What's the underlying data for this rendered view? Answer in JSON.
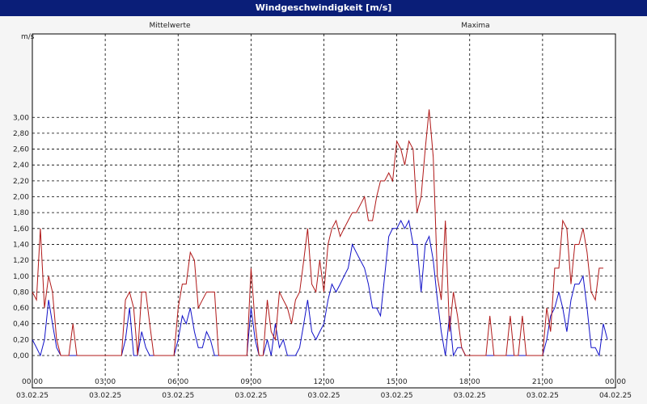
{
  "window": {
    "title": "Windgeschwindigkeit [m/s]"
  },
  "chart_data": {
    "type": "line",
    "title": "Windgeschwindigkeit [m/s]",
    "ylabel": "m/s",
    "ylim": [
      0,
      3.1
    ],
    "grid": true,
    "yticks": [
      "3,00",
      "2,80",
      "2,60",
      "2,40",
      "2,20",
      "2,00",
      "1,80",
      "1,60",
      "1,40",
      "1,20",
      "1,00",
      "0,80",
      "0,60",
      "0,40",
      "0,20",
      "0,00"
    ],
    "xticks": [
      {
        "time": "00:00",
        "date": "03.02.25"
      },
      {
        "time": "03:00",
        "date": "03.02.25"
      },
      {
        "time": "06:00",
        "date": "03.02.25"
      },
      {
        "time": "09:00",
        "date": "03.02.25"
      },
      {
        "time": "12:00",
        "date": "03.02.25"
      },
      {
        "time": "15:00",
        "date": "03.02.25"
      },
      {
        "time": "18:00",
        "date": "03.02.25"
      },
      {
        "time": "21:00",
        "date": "03.02.25"
      },
      {
        "time": "00:00",
        "date": "04.02.25"
      }
    ],
    "x_unit": "hours since 03.02.25 00:00",
    "series": [
      {
        "name": "Mittelwerte",
        "color": "#1010c8",
        "points": [
          [
            0,
            0.2
          ],
          [
            0.17,
            0.1
          ],
          [
            0.33,
            0
          ],
          [
            0.5,
            0.2
          ],
          [
            0.67,
            0.7
          ],
          [
            0.83,
            0.4
          ],
          [
            1,
            0.1
          ],
          [
            1.17,
            0
          ],
          [
            3.67,
            0
          ],
          [
            3.83,
            0.2
          ],
          [
            4,
            0.6
          ],
          [
            4.17,
            0
          ],
          [
            4.33,
            0
          ],
          [
            4.5,
            0.3
          ],
          [
            4.67,
            0.1
          ],
          [
            4.83,
            0
          ],
          [
            5.83,
            0
          ],
          [
            6,
            0.2
          ],
          [
            6.17,
            0.5
          ],
          [
            6.33,
            0.4
          ],
          [
            6.5,
            0.6
          ],
          [
            6.67,
            0.3
          ],
          [
            6.83,
            0.1
          ],
          [
            7,
            0.1
          ],
          [
            7.17,
            0.3
          ],
          [
            7.33,
            0.2
          ],
          [
            7.5,
            0
          ],
          [
            8.83,
            0
          ],
          [
            9,
            0.6
          ],
          [
            9.17,
            0.2
          ],
          [
            9.33,
            0
          ],
          [
            9.5,
            0
          ],
          [
            9.67,
            0.2
          ],
          [
            9.83,
            0
          ],
          [
            10,
            0.4
          ],
          [
            10.17,
            0.1
          ],
          [
            10.33,
            0.2
          ],
          [
            10.5,
            0
          ],
          [
            10.67,
            0
          ],
          [
            10.83,
            0
          ],
          [
            11,
            0.1
          ],
          [
            11.17,
            0.4
          ],
          [
            11.33,
            0.7
          ],
          [
            11.5,
            0.3
          ],
          [
            11.67,
            0.2
          ],
          [
            11.83,
            0.3
          ],
          [
            12,
            0.4
          ],
          [
            12.17,
            0.7
          ],
          [
            12.33,
            0.9
          ],
          [
            12.5,
            0.8
          ],
          [
            12.67,
            0.9
          ],
          [
            12.83,
            1.0
          ],
          [
            13,
            1.1
          ],
          [
            13.17,
            1.4
          ],
          [
            13.33,
            1.3
          ],
          [
            13.5,
            1.2
          ],
          [
            13.67,
            1.1
          ],
          [
            13.83,
            0.9
          ],
          [
            14,
            0.6
          ],
          [
            14.17,
            0.6
          ],
          [
            14.33,
            0.5
          ],
          [
            14.5,
            1.0
          ],
          [
            14.67,
            1.5
          ],
          [
            14.83,
            1.6
          ],
          [
            15,
            1.6
          ],
          [
            15.17,
            1.7
          ],
          [
            15.33,
            1.6
          ],
          [
            15.5,
            1.7
          ],
          [
            15.67,
            1.4
          ],
          [
            15.83,
            1.4
          ],
          [
            16,
            0.8
          ],
          [
            16.17,
            1.4
          ],
          [
            16.33,
            1.5
          ],
          [
            16.5,
            1.2
          ],
          [
            16.67,
            0.7
          ],
          [
            16.83,
            0.3
          ],
          [
            17,
            0
          ],
          [
            17.17,
            0.5
          ],
          [
            17.33,
            0
          ],
          [
            17.5,
            0.1
          ],
          [
            17.67,
            0.1
          ],
          [
            17.83,
            0
          ],
          [
            21,
            0
          ],
          [
            21.17,
            0.2
          ],
          [
            21.33,
            0.5
          ],
          [
            21.5,
            0.6
          ],
          [
            21.67,
            0.8
          ],
          [
            21.83,
            0.6
          ],
          [
            22,
            0.3
          ],
          [
            22.17,
            0.7
          ],
          [
            22.33,
            0.9
          ],
          [
            22.5,
            0.9
          ],
          [
            22.67,
            1.0
          ],
          [
            22.83,
            0.6
          ],
          [
            23,
            0.1
          ],
          [
            23.17,
            0.1
          ],
          [
            23.33,
            0
          ],
          [
            23.5,
            0.4
          ],
          [
            23.67,
            0.2
          ]
        ]
      },
      {
        "name": "Maxima",
        "color": "#b01818",
        "points": [
          [
            0,
            0.8
          ],
          [
            0.17,
            0.7
          ],
          [
            0.33,
            1.6
          ],
          [
            0.5,
            0.6
          ],
          [
            0.67,
            1.0
          ],
          [
            0.83,
            0.8
          ],
          [
            1,
            0.2
          ],
          [
            1.17,
            0
          ],
          [
            1.5,
            0
          ],
          [
            1.67,
            0.4
          ],
          [
            1.83,
            0
          ],
          [
            3.67,
            0
          ],
          [
            3.83,
            0.7
          ],
          [
            4,
            0.8
          ],
          [
            4.17,
            0.6
          ],
          [
            4.33,
            0
          ],
          [
            4.5,
            0.8
          ],
          [
            4.67,
            0.8
          ],
          [
            4.83,
            0.4
          ],
          [
            5,
            0
          ],
          [
            5.83,
            0
          ],
          [
            6,
            0.6
          ],
          [
            6.17,
            0.9
          ],
          [
            6.33,
            0.9
          ],
          [
            6.5,
            1.3
          ],
          [
            6.67,
            1.2
          ],
          [
            6.83,
            0.6
          ],
          [
            7,
            0.7
          ],
          [
            7.17,
            0.8
          ],
          [
            7.33,
            0.8
          ],
          [
            7.5,
            0.8
          ],
          [
            7.67,
            0
          ],
          [
            8.83,
            0
          ],
          [
            9,
            1.1
          ],
          [
            9.17,
            0.4
          ],
          [
            9.33,
            0
          ],
          [
            9.5,
            0
          ],
          [
            9.67,
            0.7
          ],
          [
            9.83,
            0.3
          ],
          [
            10,
            0.2
          ],
          [
            10.17,
            0.8
          ],
          [
            10.33,
            0.7
          ],
          [
            10.5,
            0.6
          ],
          [
            10.67,
            0.4
          ],
          [
            10.83,
            0.7
          ],
          [
            11,
            0.8
          ],
          [
            11.17,
            1.2
          ],
          [
            11.33,
            1.6
          ],
          [
            11.5,
            0.9
          ],
          [
            11.67,
            0.8
          ],
          [
            11.83,
            1.2
          ],
          [
            12,
            0.8
          ],
          [
            12.17,
            1.4
          ],
          [
            12.33,
            1.6
          ],
          [
            12.5,
            1.7
          ],
          [
            12.67,
            1.5
          ],
          [
            12.83,
            1.6
          ],
          [
            13,
            1.7
          ],
          [
            13.17,
            1.8
          ],
          [
            13.33,
            1.8
          ],
          [
            13.5,
            1.9
          ],
          [
            13.67,
            2.0
          ],
          [
            13.83,
            1.7
          ],
          [
            14,
            1.7
          ],
          [
            14.17,
            2.0
          ],
          [
            14.33,
            2.2
          ],
          [
            14.5,
            2.2
          ],
          [
            14.67,
            2.3
          ],
          [
            14.83,
            2.2
          ],
          [
            15,
            2.7
          ],
          [
            15.17,
            2.6
          ],
          [
            15.33,
            2.4
          ],
          [
            15.5,
            2.7
          ],
          [
            15.67,
            2.6
          ],
          [
            15.83,
            1.8
          ],
          [
            16,
            2.0
          ],
          [
            16.17,
            2.6
          ],
          [
            16.33,
            3.1
          ],
          [
            16.5,
            2.5
          ],
          [
            16.67,
            1.0
          ],
          [
            16.83,
            0.7
          ],
          [
            17,
            1.7
          ],
          [
            17.17,
            0.3
          ],
          [
            17.33,
            0.8
          ],
          [
            17.5,
            0.5
          ],
          [
            17.67,
            0.1
          ],
          [
            17.83,
            0
          ],
          [
            18.67,
            0
          ],
          [
            18.83,
            0.5
          ],
          [
            19,
            0
          ],
          [
            19.5,
            0
          ],
          [
            19.67,
            0.5
          ],
          [
            19.83,
            0
          ],
          [
            20,
            0
          ],
          [
            20.17,
            0.5
          ],
          [
            20.33,
            0
          ],
          [
            21,
            0
          ],
          [
            21.17,
            0.6
          ],
          [
            21.33,
            0.3
          ],
          [
            21.5,
            1.1
          ],
          [
            21.67,
            1.1
          ],
          [
            21.83,
            1.7
          ],
          [
            22,
            1.6
          ],
          [
            22.17,
            0.9
          ],
          [
            22.33,
            1.4
          ],
          [
            22.5,
            1.4
          ],
          [
            22.67,
            1.6
          ],
          [
            22.83,
            1.3
          ],
          [
            23,
            0.8
          ],
          [
            23.17,
            0.7
          ],
          [
            23.33,
            1.1
          ],
          [
            23.5,
            1.1
          ]
        ]
      }
    ]
  }
}
